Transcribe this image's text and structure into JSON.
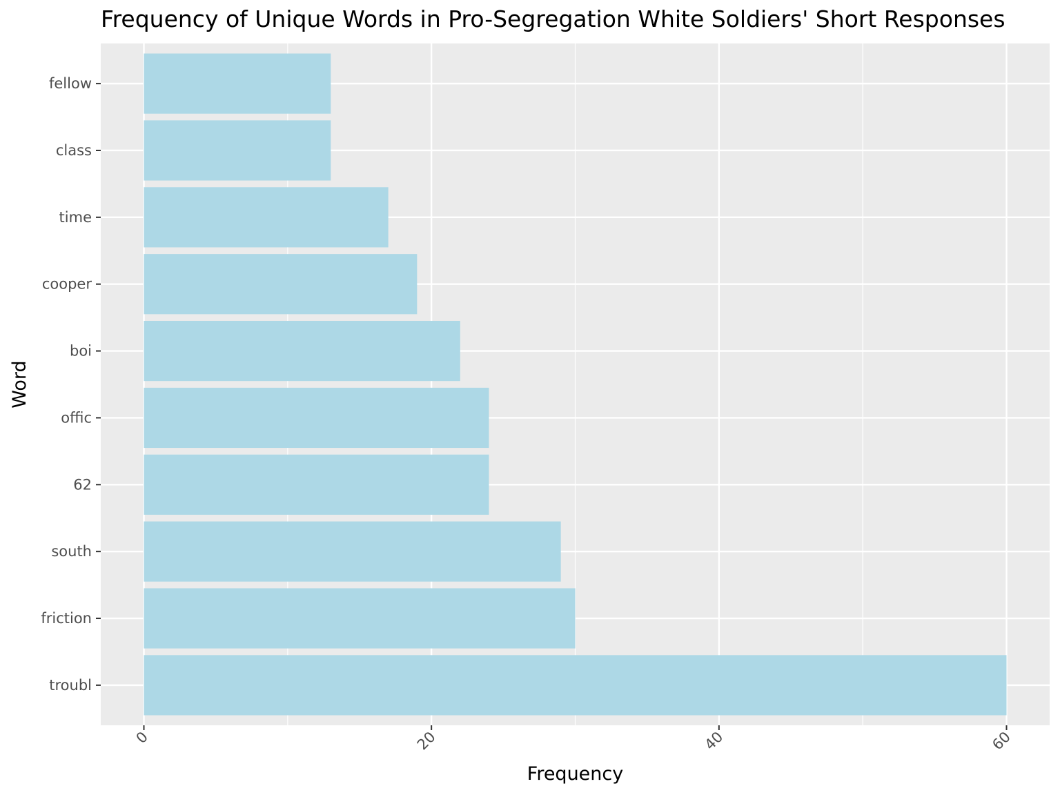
{
  "chart_data": {
    "type": "bar",
    "orientation": "horizontal",
    "title": "Frequency of Unique Words in Pro-Segregation White Soldiers' Short Responses",
    "xlabel": "Frequency",
    "ylabel": "Word",
    "categories": [
      "troubl",
      "friction",
      "south",
      "62",
      "offic",
      "boi",
      "cooper",
      "time",
      "class",
      "fellow"
    ],
    "values": [
      60,
      30,
      29,
      24,
      24,
      22,
      19,
      17,
      13,
      13
    ],
    "xlim": [
      -3,
      63
    ],
    "x_ticks": [
      0,
      20,
      40,
      60
    ],
    "x_tick_labels": [
      "0",
      "20",
      "40",
      "60"
    ],
    "x_minor_ticks": [
      10,
      30,
      50
    ],
    "grid": true,
    "bar_color": "#add8e6",
    "panel_color": "#ebebeb",
    "grid_color": "#ffffff"
  }
}
